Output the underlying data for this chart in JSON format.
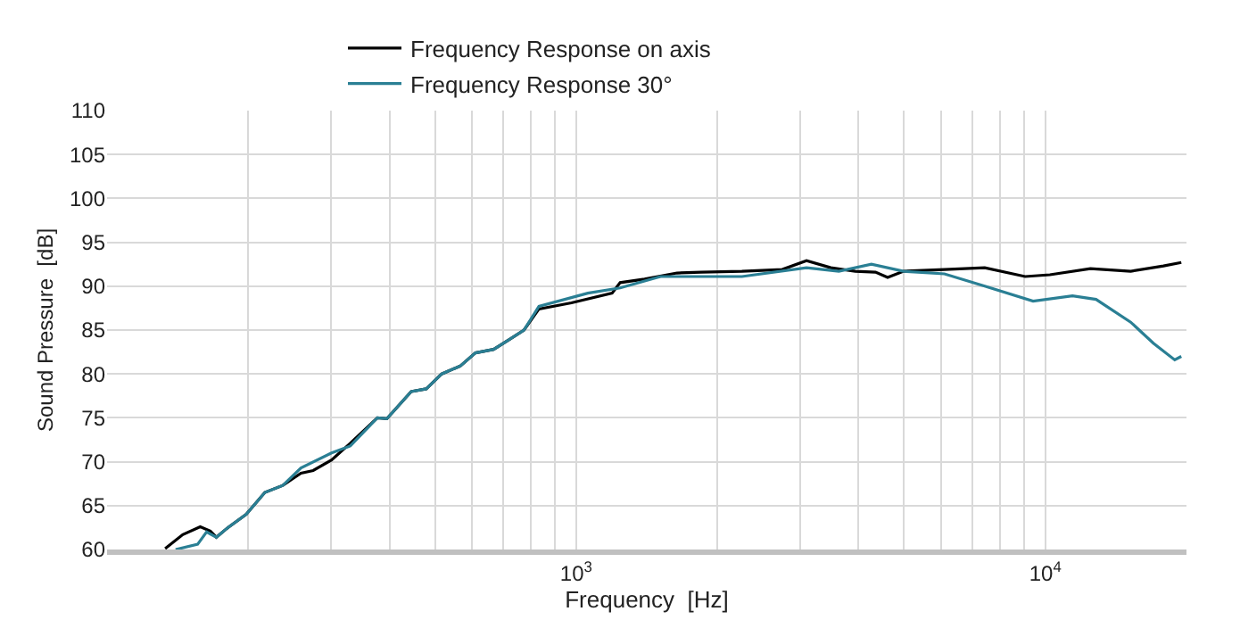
{
  "chart_data": {
    "type": "line",
    "xlabel": "Frequency  [Hz]",
    "ylabel": "Sound Pressure  [dB]",
    "log": "x",
    "grid": true,
    "legend": "top",
    "line_style": "solid",
    "marker": "none",
    "xlim": [
      100,
      20000
    ],
    "ylim": [
      60,
      110
    ],
    "xticks": [
      {
        "value": 200,
        "label": null
      },
      {
        "value": 300,
        "label": null
      },
      {
        "value": 400,
        "label": null
      },
      {
        "value": 500,
        "label": null
      },
      {
        "value": 600,
        "label": null
      },
      {
        "value": 700,
        "label": null
      },
      {
        "value": 800,
        "label": null
      },
      {
        "value": 900,
        "label": null
      },
      {
        "value": 1000,
        "label": "10$^{3}$"
      },
      {
        "value": 2000,
        "label": null
      },
      {
        "value": 3000,
        "label": null
      },
      {
        "value": 4000,
        "label": null
      },
      {
        "value": 5000,
        "label": null
      },
      {
        "value": 6000,
        "label": null
      },
      {
        "value": 7000,
        "label": null
      },
      {
        "value": 8000,
        "label": null
      },
      {
        "value": 9000,
        "label": null
      },
      {
        "value": 10000,
        "label": "10$^{4}$"
      }
    ],
    "yticks": [
      60,
      65,
      70,
      75,
      80,
      85,
      90,
      95,
      100,
      105,
      110
    ],
    "series": [
      {
        "name": "Frequency Response on axis",
        "color": "#000000",
        "x": [
          133,
          145,
          158,
          166,
          171,
          181,
          198,
          217,
          237,
          259,
          275,
          301,
          330,
          377,
          395,
          445,
          479,
          517,
          566,
          610,
          667,
          719,
          774,
          833,
          977,
          1193,
          1241,
          1399,
          1640,
          1845,
          2256,
          2750,
          3098,
          3490,
          3936,
          4347,
          4613,
          4990,
          6095,
          7430,
          9060,
          10230,
          12480,
          15210,
          17870,
          19500
        ],
        "values": [
          60.1,
          61.7,
          62.6,
          62.1,
          61.4,
          62.5,
          64.0,
          66.5,
          67.3,
          68.7,
          69.0,
          70.2,
          72.1,
          75.0,
          74.9,
          78.0,
          78.3,
          80.0,
          80.9,
          82.4,
          82.8,
          83.9,
          85.0,
          87.4,
          88.1,
          89.2,
          90.4,
          90.8,
          91.5,
          91.6,
          91.7,
          91.9,
          92.9,
          92.1,
          91.7,
          91.6,
          91.0,
          91.7,
          91.9,
          92.1,
          91.1,
          91.3,
          92.0,
          91.7,
          92.3,
          92.7
        ]
      },
      {
        "name": "Frequency Response 30°",
        "color": "#2a7f94",
        "x": [
          140,
          156,
          163,
          171,
          181,
          198,
          217,
          237,
          259,
          301,
          330,
          377,
          395,
          445,
          479,
          517,
          566,
          610,
          667,
          719,
          774,
          833,
          1059,
          1241,
          1513,
          2256,
          3098,
          3630,
          4260,
          4990,
          6095,
          7430,
          9420,
          11430,
          12830,
          15210,
          17000,
          18880,
          19500
        ],
        "values": [
          60.0,
          60.6,
          62.0,
          61.4,
          62.5,
          64.0,
          66.5,
          67.3,
          69.3,
          71.0,
          71.8,
          75.0,
          74.9,
          78.0,
          78.3,
          80.0,
          80.9,
          82.4,
          82.8,
          83.9,
          85.0,
          87.7,
          89.2,
          89.8,
          91.1,
          91.1,
          92.1,
          91.7,
          92.5,
          91.7,
          91.4,
          90.0,
          88.3,
          88.9,
          88.5,
          85.9,
          83.5,
          81.6,
          82.0
        ]
      }
    ]
  }
}
